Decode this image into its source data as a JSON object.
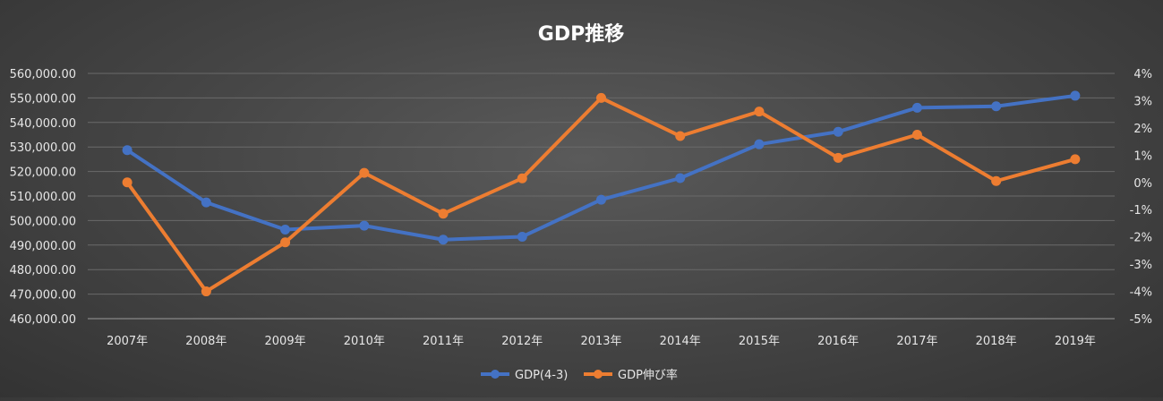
{
  "chart_data": {
    "type": "line",
    "title": "GDP推移",
    "categories": [
      "2007年",
      "2008年",
      "2009年",
      "2010年",
      "2011年",
      "2012年",
      "2013年",
      "2014年",
      "2015年",
      "2016年",
      "2017年",
      "2018年",
      "2019年"
    ],
    "series": [
      {
        "name": "GDP(4-3)",
        "axis": "left",
        "color": "#4472c4",
        "values": [
          528700,
          507400,
          496300,
          497900,
          492200,
          493400,
          508500,
          517300,
          531100,
          536200,
          546000,
          546600,
          550900
        ]
      },
      {
        "name": "GDP伸び率",
        "axis": "right",
        "color": "#ed7d31",
        "values": [
          0.0,
          -4.0,
          -2.2,
          0.35,
          -1.15,
          0.15,
          3.1,
          1.7,
          2.6,
          0.9,
          1.75,
          0.05,
          0.85
        ]
      }
    ],
    "y_left": {
      "min": 460000,
      "max": 560000,
      "step": 10000,
      "tick_labels": [
        "460,000.00",
        "470,000.00",
        "480,000.00",
        "490,000.00",
        "500,000.00",
        "510,000.00",
        "520,000.00",
        "530,000.00",
        "540,000.00",
        "550,000.00",
        "560,000.00"
      ]
    },
    "y_right": {
      "min": -5,
      "max": 4,
      "step": 1,
      "tick_labels": [
        "-5%",
        "-4%",
        "-3%",
        "-2%",
        "-1%",
        "0%",
        "1%",
        "2%",
        "3%",
        "4%"
      ]
    },
    "grid": true,
    "legend": "bottom"
  }
}
